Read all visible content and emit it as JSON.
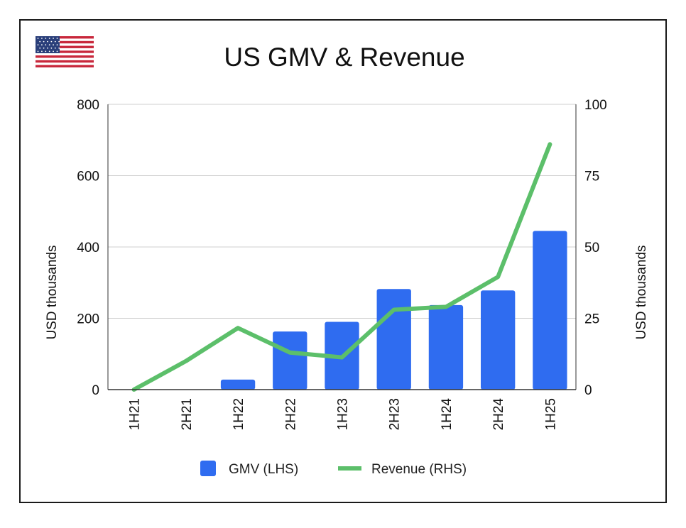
{
  "flag_icon": "us-flag-icon",
  "chart_data": {
    "type": "bar+line",
    "title": "US GMV & Revenue",
    "categories": [
      "1H21",
      "2H21",
      "1H22",
      "2H22",
      "1H23",
      "2H23",
      "1H24",
      "2H24",
      "1H25"
    ],
    "series": [
      {
        "name": "GMV (LHS)",
        "type": "bar",
        "axis": "left",
        "color": "#2f6cf0",
        "values": [
          0,
          0,
          28,
          163,
          190,
          282,
          237,
          278,
          445
        ]
      },
      {
        "name": "Revenue (RHS)",
        "type": "line",
        "axis": "right",
        "color": "#5cbf6a",
        "values": [
          0,
          10,
          21.6,
          13,
          11.3,
          28,
          29,
          39.5,
          86
        ]
      }
    ],
    "left_axis": {
      "label": "USD thousands",
      "ylim": [
        0,
        800
      ],
      "ticks": [
        0,
        200,
        400,
        600,
        800
      ]
    },
    "right_axis": {
      "label": "USD thousands",
      "ylim": [
        0,
        100
      ],
      "ticks": [
        0,
        25,
        50,
        75,
        100
      ]
    },
    "grid": true,
    "legend_position": "bottom"
  }
}
